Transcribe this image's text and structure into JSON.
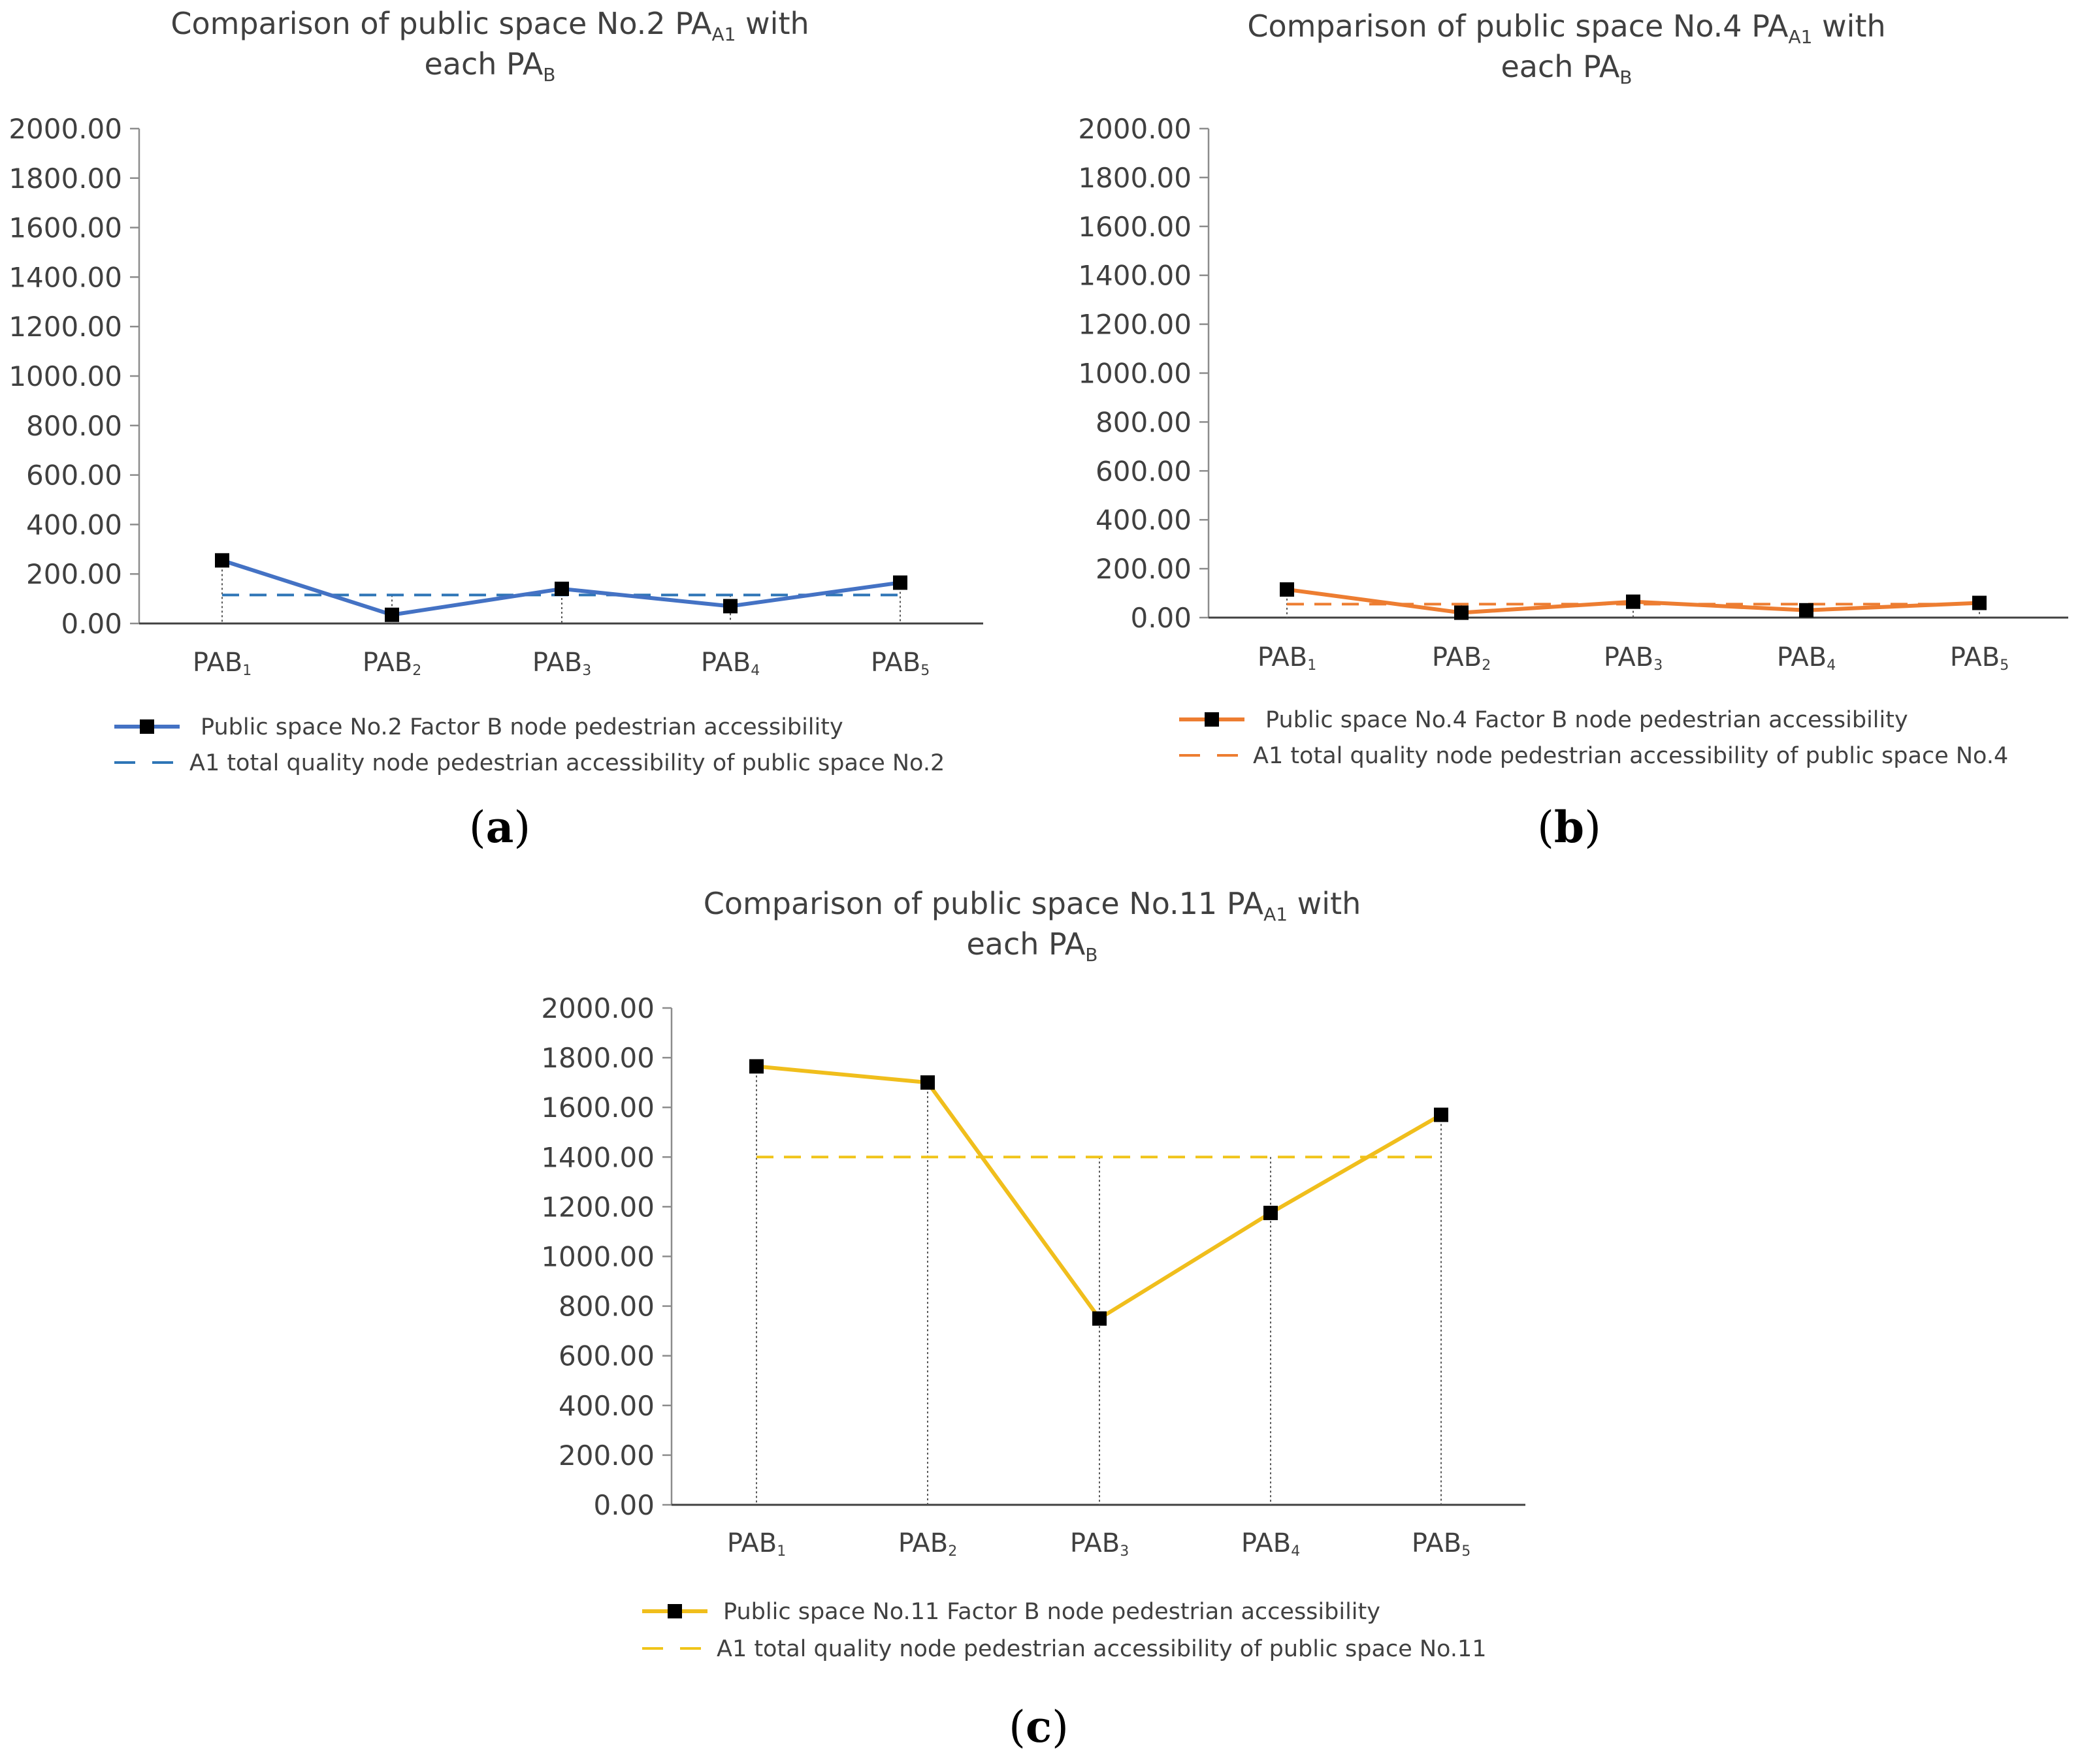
{
  "chart_data": [
    {
      "type": "line",
      "panel_label": "a",
      "title": "Comparison of public space No.2 PA",
      "title_subscript": "A1",
      "title_suffix": " with",
      "title_line2": "each PA",
      "title_line2_subscript": "B",
      "y_tick_labels": [
        "0.00",
        "200.00",
        "400.00",
        "600.00",
        "800.00",
        "1000.00",
        "1200.00",
        "1400.00",
        "1600.00",
        "1800.00",
        "2000.00"
      ],
      "ylim": [
        0,
        2000
      ],
      "categories": [
        {
          "main": "PAB",
          "sub": "1"
        },
        {
          "main": "PAB",
          "sub": "2"
        },
        {
          "main": "PAB",
          "sub": "3"
        },
        {
          "main": "PAB",
          "sub": "4"
        },
        {
          "main": "PAB",
          "sub": "5"
        }
      ],
      "series": [
        {
          "name": "Public space No.2 Factor B node pedestrian accessibility",
          "values": [
            255,
            35,
            140,
            70,
            165
          ],
          "color": "#4472C4",
          "style": "solid-marker"
        },
        {
          "name": "A1 total quality node pedestrian accessibility of public space No.2",
          "values": [
            115,
            115,
            115,
            115,
            115
          ],
          "color": "#2E75B6",
          "style": "dashed"
        }
      ],
      "legend_position": "bottom"
    },
    {
      "type": "line",
      "panel_label": "b",
      "title": "Comparison of public space No.4 PA",
      "title_subscript": "A1",
      "title_suffix": " with",
      "title_line2": "each PA",
      "title_line2_subscript": "B",
      "y_tick_labels": [
        "0.00",
        "200.00",
        "400.00",
        "600.00",
        "800.00",
        "1000.00",
        "1200.00",
        "1400.00",
        "1600.00",
        "1800.00",
        "2000.00"
      ],
      "ylim": [
        0,
        2000
      ],
      "categories": [
        {
          "main": "PAB",
          "sub": "1"
        },
        {
          "main": "PAB",
          "sub": "2"
        },
        {
          "main": "PAB",
          "sub": "3"
        },
        {
          "main": "PAB",
          "sub": "4"
        },
        {
          "main": "PAB",
          "sub": "5"
        }
      ],
      "series": [
        {
          "name": "Public space No.4 Factor B node pedestrian accessibility",
          "values": [
            115,
            20,
            65,
            30,
            60
          ],
          "color": "#ED7D31",
          "style": "solid-marker"
        },
        {
          "name": "A1 total quality node pedestrian accessibility of public space No.4",
          "values": [
            55,
            55,
            55,
            55,
            55
          ],
          "color": "#ED7D31",
          "style": "dashed"
        }
      ],
      "legend_position": "bottom"
    },
    {
      "type": "line",
      "panel_label": "c",
      "title": "Comparison of public space No.11 PA",
      "title_subscript": "A1",
      "title_suffix": " with",
      "title_line2": "each PA",
      "title_line2_subscript": "B",
      "y_tick_labels": [
        "0.00",
        "200.00",
        "400.00",
        "600.00",
        "800.00",
        "1000.00",
        "1200.00",
        "1400.00",
        "1600.00",
        "1800.00",
        "2000.00"
      ],
      "ylim": [
        0,
        2000
      ],
      "categories": [
        {
          "main": "PAB",
          "sub": "1"
        },
        {
          "main": "PAB",
          "sub": "2"
        },
        {
          "main": "PAB",
          "sub": "3"
        },
        {
          "main": "PAB",
          "sub": "4"
        },
        {
          "main": "PAB",
          "sub": "5"
        }
      ],
      "series": [
        {
          "name": "Public space No.11 Factor B node pedestrian accessibility",
          "values": [
            1765,
            1700,
            750,
            1175,
            1570
          ],
          "color": "#F0BE1C",
          "style": "solid-marker"
        },
        {
          "name": "A1 total quality node pedestrian accessibility of public space No.11",
          "values": [
            1400,
            1400,
            1400,
            1400,
            1400
          ],
          "color": "#F0C419",
          "style": "dashed"
        }
      ],
      "legend_position": "bottom"
    }
  ]
}
